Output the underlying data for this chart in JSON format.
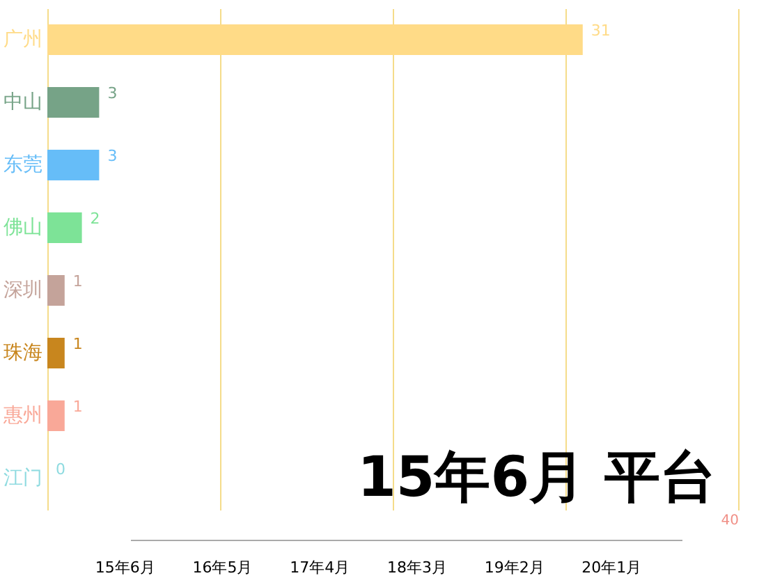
{
  "chart_data": {
    "type": "bar",
    "orientation": "horizontal",
    "title": "15年6月 平台",
    "categories": [
      "广州",
      "中山",
      "东莞",
      "佛山",
      "深圳",
      "珠海",
      "惠州",
      "江门"
    ],
    "values": [
      31,
      3,
      3,
      2,
      1,
      1,
      1,
      0
    ],
    "colors": [
      "#ffdb87",
      "#76a387",
      "#66bdf8",
      "#7de397",
      "#c4a39a",
      "#c8861e",
      "#f9a898",
      "#8fdbe0"
    ],
    "xlim": [
      0,
      40
    ],
    "xticks": [
      {
        "value": 0,
        "label": null
      },
      {
        "value": 10,
        "label": null
      },
      {
        "value": 20,
        "label": null
      },
      {
        "value": 30,
        "label": null
      },
      40
    ],
    "grid": "x",
    "data_labels": true,
    "annotations": [
      "15年6月",
      "16年5月",
      "17年4月",
      "18年3月",
      "19年2月",
      "20年1月"
    ]
  }
}
